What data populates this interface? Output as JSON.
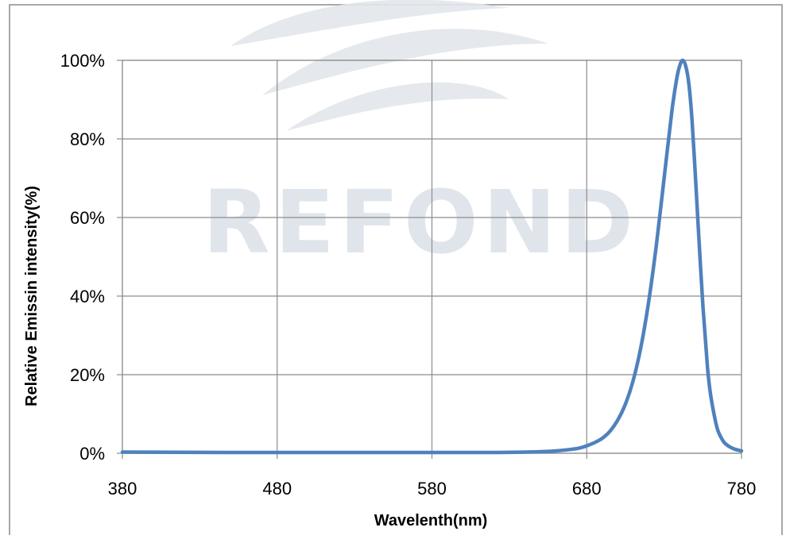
{
  "watermark": {
    "text": "REFOND"
  },
  "chart_data": {
    "type": "line",
    "title": "",
    "xlabel": "Wavelenth(nm)",
    "ylabel": "Relative Emissin intensity(%)",
    "xlim": [
      380,
      780
    ],
    "ylim": [
      0,
      100
    ],
    "x_ticks": [
      380,
      480,
      580,
      680,
      780
    ],
    "x_tick_labels": [
      "380",
      "480",
      "580",
      "680",
      "780"
    ],
    "y_ticks": [
      0,
      20,
      40,
      60,
      80,
      100
    ],
    "y_tick_labels": [
      "0%",
      "20%",
      "40%",
      "60%",
      "80%",
      "100%"
    ],
    "grid": true,
    "legend": "none",
    "series": [
      {
        "color": "#4f81bd",
        "x": [
          380,
          450,
          550,
          620,
          650,
          660,
          670,
          675,
          680,
          685,
          690,
          695,
          700,
          705,
          710,
          715,
          720,
          725,
          730,
          735,
          738,
          740,
          742,
          744,
          746,
          748,
          750,
          752,
          755,
          758,
          760,
          763,
          765,
          768,
          770,
          773,
          776,
          780
        ],
        "y": [
          0.3,
          0.2,
          0.2,
          0.2,
          0.4,
          0.6,
          1.0,
          1.3,
          1.9,
          2.7,
          3.8,
          5.6,
          8.4,
          12.5,
          18.5,
          27.0,
          38.5,
          53.0,
          70.0,
          87.0,
          95.0,
          98.5,
          100.0,
          98.5,
          94.0,
          85.0,
          72.0,
          58.0,
          38.0,
          22.0,
          15.0,
          8.5,
          5.5,
          3.2,
          2.3,
          1.5,
          1.0,
          0.6
        ]
      }
    ]
  }
}
